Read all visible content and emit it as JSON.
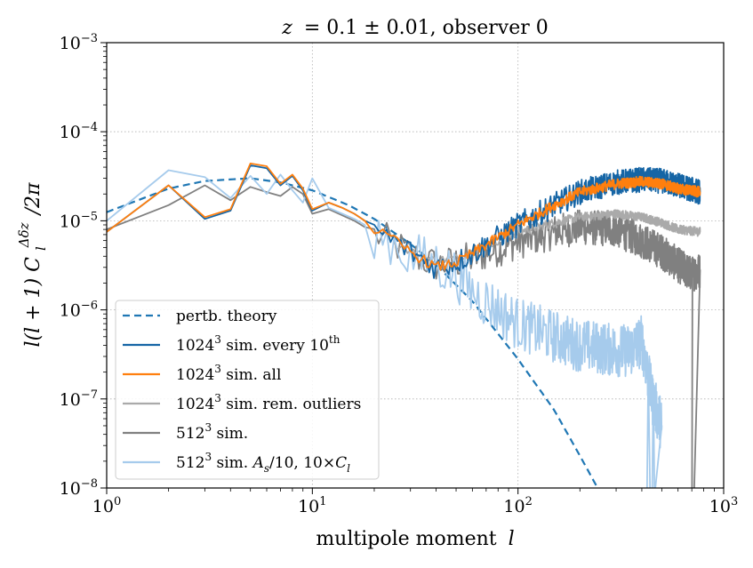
{
  "chart_data": {
    "type": "line",
    "title": "z = 0.1 ± 0.01, observer 0",
    "title_parts": {
      "z": "z",
      "rest": "= 0.1 ± 0.01, observer 0"
    },
    "xlabel": "multipole moment l",
    "xlabel_parts": {
      "text": "multipole moment",
      "var": "l"
    },
    "ylabel": "l(l+1) C_l^{Δδz} / 2π",
    "ylabel_parts": {
      "pre": "l(l + 1) C",
      "sub": "l",
      "sup": "Δδz",
      "post": "/2π"
    },
    "xscale": "log",
    "yscale": "log",
    "xlim": [
      1,
      1000
    ],
    "ylim": [
      1e-08,
      0.001
    ],
    "grid": true,
    "legend_position": "lower-left",
    "xticks": [
      {
        "value": 1,
        "base": "10",
        "exp": "0"
      },
      {
        "value": 10,
        "base": "10",
        "exp": "1"
      },
      {
        "value": 100,
        "base": "10",
        "exp": "2"
      },
      {
        "value": 1000,
        "base": "10",
        "exp": "3"
      }
    ],
    "yticks": [
      {
        "value": 1e-08,
        "base": "10",
        "exp": "−8"
      },
      {
        "value": 1e-07,
        "base": "10",
        "exp": "−7"
      },
      {
        "value": 1e-06,
        "base": "10",
        "exp": "−6"
      },
      {
        "value": 1e-05,
        "base": "10",
        "exp": "−5"
      },
      {
        "value": 0.0001,
        "base": "10",
        "exp": "−4"
      },
      {
        "value": 0.001,
        "base": "10",
        "exp": "−3"
      }
    ],
    "series": [
      {
        "key": "theory",
        "name": "pertb. theory",
        "legend": {
          "pre": "pertb. theory"
        },
        "color": "#1f77b4",
        "dash": "dashed",
        "x": [
          1,
          2,
          3,
          5,
          7,
          10,
          15,
          20,
          30,
          40,
          60,
          100,
          150,
          200,
          250
        ],
        "y": [
          1.25e-05,
          2.3e-05,
          2.8e-05,
          3e-05,
          2.7e-05,
          2.2e-05,
          1.5e-05,
          1.05e-05,
          5.5e-06,
          3.2e-06,
          1.25e-06,
          2.8e-07,
          7.5e-08,
          2.3e-08,
          9e-09
        ]
      },
      {
        "key": "sim1024_every10",
        "name": "1024^3 sim. every 10th",
        "legend": {
          "pre": "1024",
          "sup": "3",
          "mid": " sim. every 10",
          "sup2": "th"
        },
        "color": "#1565a5",
        "dash": "solid",
        "noise": 0.14,
        "x": [
          1,
          2,
          3,
          4,
          5,
          6,
          7,
          8,
          9,
          10,
          12,
          14,
          16,
          18,
          20,
          25,
          30,
          35,
          40,
          50,
          60,
          80,
          100,
          150,
          200,
          300,
          400,
          500,
          600,
          768
        ],
        "y": [
          7.5e-06,
          2.5e-05,
          1.05e-05,
          1.3e-05,
          4.2e-05,
          3.9e-05,
          2.5e-05,
          3.2e-05,
          2.2e-05,
          1.3e-05,
          1.6e-05,
          1.4e-05,
          1.2e-05,
          1e-05,
          8e-06,
          6e-06,
          4.5e-06,
          3.6e-06,
          3e-06,
          3.4e-06,
          4.3e-06,
          6.5e-06,
          9e-06,
          1.5e-05,
          2.1e-05,
          2.7e-05,
          2.9e-05,
          2.8e-05,
          2.5e-05,
          2.1e-05
        ]
      },
      {
        "key": "sim1024_all",
        "name": "1024^3 sim. all",
        "legend": {
          "pre": "1024",
          "sup": "3",
          "mid": " sim. all"
        },
        "color": "#ff7f0e",
        "dash": "solid",
        "noise": 0.06,
        "x": [
          1,
          2,
          3,
          4,
          5,
          6,
          7,
          8,
          9,
          10,
          12,
          14,
          16,
          18,
          20,
          25,
          30,
          35,
          40,
          50,
          60,
          80,
          100,
          150,
          200,
          300,
          400,
          500,
          600,
          768
        ],
        "y": [
          7.5e-06,
          2.5e-05,
          1.1e-05,
          1.35e-05,
          4.4e-05,
          4.1e-05,
          2.6e-05,
          3.3e-05,
          2.3e-05,
          1.35e-05,
          1.6e-05,
          1.4e-05,
          1.2e-05,
          1e-05,
          8e-06,
          6e-06,
          4.5e-06,
          3.6e-06,
          3e-06,
          3.4e-06,
          4.3e-06,
          6.5e-06,
          9e-06,
          1.5e-05,
          2.1e-05,
          2.6e-05,
          2.75e-05,
          2.6e-05,
          2.3e-05,
          2.1e-05
        ]
      },
      {
        "key": "sim1024_rem",
        "name": "1024^3 sim. rem. outliers",
        "legend": {
          "pre": "1024",
          "sup": "3",
          "mid": " sim. rem. outliers"
        },
        "color": "#aaaaaa",
        "dash": "solid",
        "noise": 0.05,
        "x": [
          25,
          30,
          35,
          40,
          50,
          60,
          80,
          100,
          150,
          200,
          300,
          400,
          500,
          600,
          768
        ],
        "y": [
          5.5e-06,
          4.5e-06,
          3.8e-06,
          3.6e-06,
          3.8e-06,
          4.5e-06,
          6e-06,
          7.5e-06,
          9.5e-06,
          1.1e-05,
          1.2e-05,
          1.1e-05,
          9.5e-06,
          8e-06,
          7.5e-06
        ]
      },
      {
        "key": "sim512",
        "name": "512^3 sim.",
        "legend": {
          "pre": "512",
          "sup": "3",
          "mid": " sim."
        },
        "color": "#808080",
        "dash": "solid",
        "noise": 0.2,
        "x": [
          1,
          2,
          3,
          4,
          5,
          6,
          7,
          8,
          9,
          10,
          12,
          14,
          16,
          18,
          20,
          25,
          30,
          35,
          40,
          50,
          60,
          80,
          100,
          150,
          200,
          300,
          400,
          500,
          600,
          700,
          768
        ],
        "y": [
          8e-06,
          1.5e-05,
          2.5e-05,
          1.7e-05,
          2.4e-05,
          2.1e-05,
          1.9e-05,
          2.4e-05,
          2e-05,
          1.2e-05,
          1.35e-05,
          1.15e-05,
          1e-05,
          8.5e-06,
          7e-06,
          5.5e-06,
          4.2e-06,
          3.6e-06,
          3.2e-06,
          3.4e-06,
          3.8e-06,
          4.8e-06,
          5.8e-06,
          7.5e-06,
          8.5e-06,
          8e-06,
          6e-06,
          4.5e-06,
          3.2e-06,
          2.5e-06,
          2.8e-06
        ]
      },
      {
        "key": "sim512_scaled",
        "name": "512^3 sim. A_s/10, 10×C_l",
        "legend": {
          "pre": "512",
          "sup": "3",
          "mid": " sim. ",
          "var": "A",
          "sub": "s",
          "post": "/10, 10×",
          "var2": "C",
          "sub2": "l"
        },
        "color": "#a6cbec",
        "dash": "solid",
        "noise": 0.3,
        "x": [
          1,
          2,
          3,
          4,
          5,
          6,
          7,
          8,
          9,
          10,
          12,
          14,
          16,
          18,
          20,
          25,
          30,
          35,
          40,
          50,
          60,
          80,
          100,
          150,
          200,
          300,
          350,
          400,
          450,
          500
        ],
        "y": [
          1e-05,
          3.7e-05,
          3.1e-05,
          1.8e-05,
          3.2e-05,
          2e-05,
          3.3e-05,
          2.2e-05,
          1.6e-05,
          3e-05,
          1.4e-05,
          1.2e-05,
          1.05e-05,
          9e-06,
          7.5e-06,
          5.5e-06,
          4e-06,
          3.5e-06,
          3.3e-06,
          2.5e-06,
          1.6e-06,
          1e-06,
          7e-07,
          5e-07,
          4e-07,
          3.5e-07,
          3.5e-07,
          4.5e-07,
          1e-07,
          5e-08
        ]
      }
    ]
  }
}
